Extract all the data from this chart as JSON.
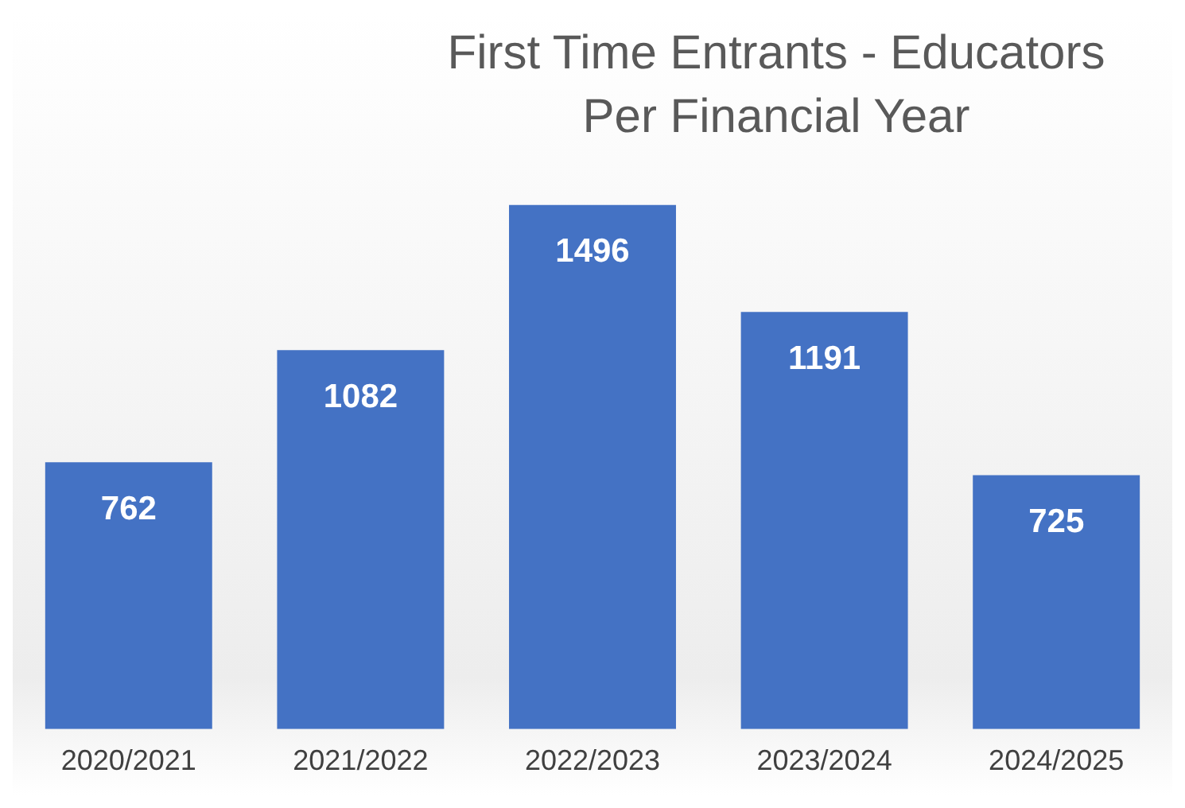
{
  "chart_data": {
    "type": "bar",
    "title": "First Time Entrants - Educators\nPer Financial Year",
    "categories": [
      "2020/2021",
      "2021/2022",
      "2022/2023",
      "2023/2024",
      "2024/2025"
    ],
    "values": [
      762,
      1082,
      1496,
      1191,
      725
    ],
    "color": "#4472c4",
    "data_labels": true,
    "grid": false,
    "legend": false
  }
}
